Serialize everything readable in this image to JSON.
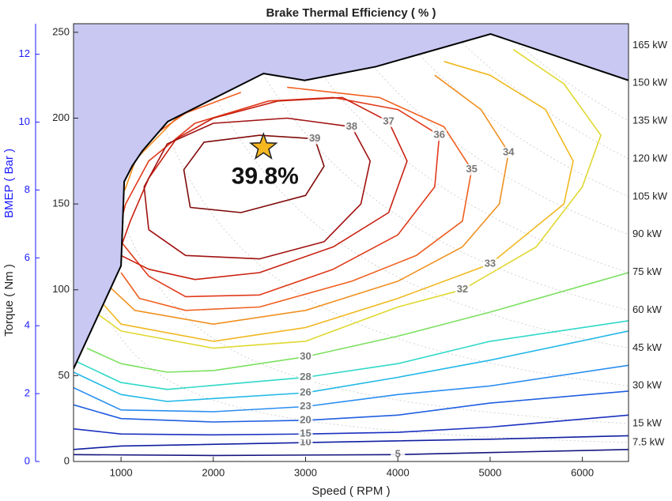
{
  "chart_data": {
    "type": "contour",
    "title": "Brake Thermal Efficiency ( % )",
    "xlabel": "Speed ( RPM )",
    "ylabel": "Torque ( Nm )",
    "y2label": "BMEP ( Bar )",
    "xlim": [
      485,
      6500
    ],
    "xticks": [
      1000,
      2000,
      3000,
      4000,
      5000,
      6000
    ],
    "ylim": [
      0,
      255
    ],
    "yticks": [
      0,
      50,
      100,
      150,
      200,
      250
    ],
    "y2lim": [
      0,
      12.9
    ],
    "y2ticks": [
      0,
      2,
      4,
      6,
      8,
      10,
      12
    ],
    "y2color": "#1a1aff",
    "max_torque": {
      "color": "#000000",
      "fill": "#c8c8f2",
      "x": [
        485,
        1000,
        1034,
        1120,
        1232,
        1506,
        2544,
        2990,
        3762,
        5005,
        6500
      ],
      "y": [
        54,
        114,
        163,
        172,
        181,
        198,
        226,
        222,
        230,
        249,
        222
      ]
    },
    "power_lines": [
      {
        "value": 7.5,
        "label": "7.5 kW"
      },
      {
        "value": 15,
        "label": "15 kW"
      },
      {
        "value": 30,
        "label": "30 kW"
      },
      {
        "value": 45,
        "label": "45 kW"
      },
      {
        "value": 60,
        "label": "60 kW"
      },
      {
        "value": 75,
        "label": "75 kW"
      },
      {
        "value": 90,
        "label": "90 kW"
      },
      {
        "value": 105,
        "label": "105 kW"
      },
      {
        "value": 120,
        "label": "120 kW"
      },
      {
        "value": 135,
        "label": "135 kW"
      },
      {
        "value": 150,
        "label": "150 kW"
      },
      {
        "value": 165,
        "label": "165 kW"
      }
    ],
    "contours": [
      {
        "level": 5,
        "color": "#15157f",
        "x": [
          485,
          2000,
          4000,
          6500
        ],
        "y": [
          4,
          3.5,
          4,
          7
        ]
      },
      {
        "level": 10,
        "color": "#0f1fa0",
        "x": [
          485,
          1000,
          3000,
          5000,
          6500
        ],
        "y": [
          7,
          9,
          11,
          13,
          15
        ]
      },
      {
        "level": 15,
        "color": "#1a30c0",
        "x": [
          485,
          1000,
          2000,
          3000,
          4000,
          5000,
          6500
        ],
        "y": [
          19,
          16,
          15.5,
          16,
          17,
          20,
          27
        ]
      },
      {
        "level": 20,
        "color": "#1f5fe0",
        "x": [
          485,
          1000,
          2000,
          3000,
          4000,
          5000,
          6500
        ],
        "y": [
          33,
          25,
          23,
          24,
          27,
          34,
          41
        ]
      },
      {
        "level": 23,
        "color": "#2a8ef0",
        "x": [
          485,
          1000,
          2000,
          3000,
          4000,
          5000,
          6500
        ],
        "y": [
          43,
          30,
          29,
          32,
          39,
          44,
          56
        ]
      },
      {
        "level": 26,
        "color": "#20b8e8",
        "x": [
          485,
          1000,
          1500,
          3000,
          4000,
          5000,
          6500
        ],
        "y": [
          52,
          39,
          35,
          40,
          49,
          59,
          76
        ]
      },
      {
        "level": 28,
        "color": "#30d8c8",
        "x": [
          485,
          1000,
          1500,
          3000,
          4000,
          5000,
          6500
        ],
        "y": [
          59,
          46,
          42,
          49,
          57,
          70,
          82
        ]
      },
      {
        "level": 30,
        "color": "#7ce060",
        "x": [
          630,
          1000,
          1500,
          2000,
          3000,
          4000,
          5000,
          6500
        ],
        "y": [
          66,
          57,
          52,
          53,
          61,
          73,
          87,
          110
        ]
      },
      {
        "level": 32,
        "color": "#e0d830",
        "x": [
          717,
          1000,
          2000,
          3000,
          4000,
          4700,
          5500,
          6000,
          6200,
          5800,
          5250
        ],
        "y": [
          87,
          76,
          66,
          70,
          90,
          100,
          125,
          160,
          190,
          220,
          240
        ]
      },
      {
        "level": 33,
        "color": "#f0b820",
        "x": [
          800,
          1000,
          2000,
          3000,
          4000,
          5000,
          5800,
          5900,
          5600,
          5000,
          4500
        ],
        "y": [
          92,
          80,
          70,
          78,
          95,
          115,
          150,
          175,
          205,
          225,
          233
        ]
      },
      {
        "level": 34,
        "color": "#f09020",
        "x": [
          890,
          1150,
          2000,
          3000,
          4000,
          4700,
          5100,
          5200,
          4900,
          4400,
          null,
          1040,
          1160,
          1600,
          2300
        ],
        "y": [
          101,
          88,
          80,
          88,
          105,
          125,
          150,
          180,
          205,
          225,
          null,
          158,
          176,
          200,
          220
        ]
      },
      {
        "level": 35,
        "color": "#f06020",
        "x": [
          1000,
          1200,
          1700,
          2500,
          3500,
          4200,
          4700,
          4800,
          4500,
          3800,
          2800,
          null,
          1080,
          1300,
          1700,
          2300
        ],
        "y": [
          110,
          95,
          88,
          90,
          105,
          120,
          140,
          170,
          195,
          212,
          218,
          null,
          168,
          188,
          203,
          215
        ]
      },
      {
        "level": 36,
        "color": "#e03a1a",
        "x": [
          1000,
          1300,
          1700,
          2500,
          3300,
          4000,
          4400,
          4450,
          4000,
          3300,
          2600,
          1800,
          1300,
          1050,
          1000
        ],
        "y": [
          128,
          108,
          96,
          97,
          112,
          132,
          160,
          190,
          205,
          212,
          210,
          197,
          175,
          150,
          140
        ]
      },
      {
        "level": 37,
        "color": "#c82010",
        "x": [
          1000,
          1300,
          1800,
          2500,
          3300,
          3900,
          4100,
          3900,
          3400,
          2700,
          2000,
          1600,
          1300,
          1100,
          1000
        ],
        "y": [
          120,
          112,
          106,
          110,
          125,
          145,
          175,
          198,
          212,
          210,
          200,
          188,
          165,
          140,
          125
        ]
      },
      {
        "level": 38,
        "color": "#a01010",
        "x": [
          1300,
          1700,
          2500,
          3200,
          3600,
          3700,
          3500,
          2800,
          2000,
          1500,
          1250,
          1300
        ],
        "y": [
          135,
          120,
          118,
          128,
          150,
          175,
          195,
          200,
          197,
          185,
          160,
          135
        ]
      },
      {
        "level": 39,
        "color": "#800a0a",
        "x": [
          1750,
          2300,
          3000,
          3200,
          3100,
          2500,
          1900,
          1680,
          1750
        ],
        "y": [
          148,
          145,
          155,
          172,
          188,
          190,
          186,
          170,
          148
        ]
      }
    ],
    "annotation": {
      "text": "39.8%",
      "x": 2544,
      "y": 183,
      "color": "#f5b820"
    }
  }
}
